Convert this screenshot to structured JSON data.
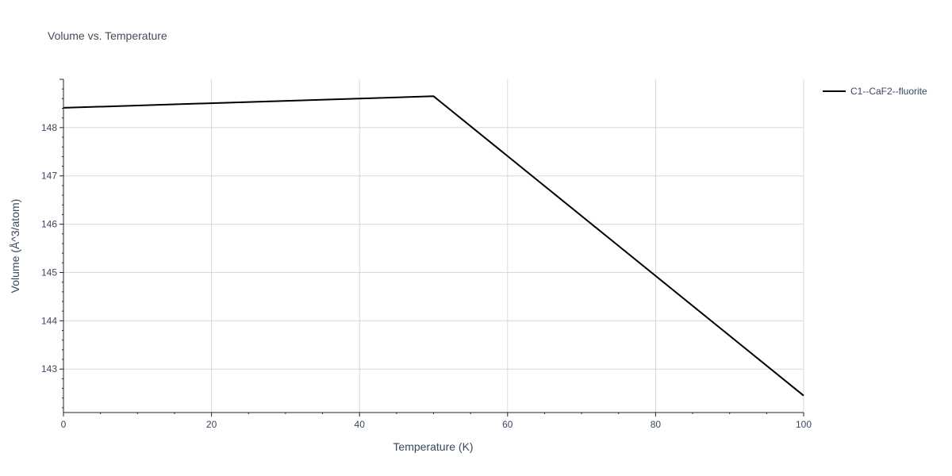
{
  "chart_data": {
    "type": "line",
    "title": "Volume vs. Temperature",
    "xlabel": "Temperature (K)",
    "ylabel": "Volume (Å^3/atom)",
    "xlim": [
      0,
      100
    ],
    "ylim": [
      142.1,
      149.0
    ],
    "x_ticks": [
      0,
      20,
      40,
      60,
      80,
      100
    ],
    "y_ticks": [
      143,
      144,
      145,
      146,
      147,
      148
    ],
    "grid": true,
    "legend_position": "top-right",
    "series": [
      {
        "name": "C1--CaF2--fluorite",
        "color": "#000000",
        "x": [
          0,
          50,
          100
        ],
        "y": [
          148.41,
          148.65,
          142.45
        ]
      }
    ]
  }
}
